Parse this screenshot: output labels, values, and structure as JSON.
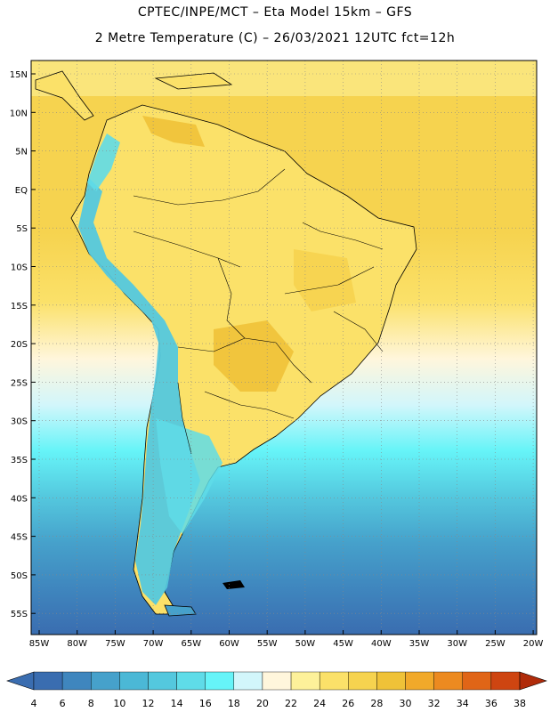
{
  "header": {
    "line1": "CPTEC/INPE/MCT –  Eta Model 15km – GFS",
    "line2": "2 Metre Temperature (C) – 26/03/2021 12UTC fct=12h"
  },
  "axes": {
    "lat_labels": [
      "15N",
      "10N",
      "5N",
      "EQ",
      "5S",
      "10S",
      "15S",
      "20S",
      "25S",
      "30S",
      "35S",
      "40S",
      "45S",
      "50S",
      "55S"
    ],
    "lon_labels": [
      "85W",
      "80W",
      "75W",
      "70W",
      "65W",
      "60W",
      "55W",
      "50W",
      "45W",
      "40W",
      "35W",
      "30W",
      "25W",
      "20W"
    ]
  },
  "colorbar": {
    "labels": [
      "4",
      "6",
      "8",
      "10",
      "12",
      "14",
      "16",
      "18",
      "20",
      "22",
      "24",
      "26",
      "28",
      "30",
      "32",
      "34",
      "36",
      "38"
    ],
    "colors": [
      "#3a6db0",
      "#3f86be",
      "#46a1cb",
      "#4bb8d6",
      "#54c8de",
      "#5fdce8",
      "#66f4f8",
      "#d2f6fb",
      "#fff6dc",
      "#fdf19a",
      "#fbe169",
      "#f6d34f",
      "#efc238",
      "#f1a92a",
      "#ec8a20",
      "#e06517",
      "#ce4511",
      "#b02b0a"
    ],
    "low_color": "#3a6db0",
    "high_color": "#b02b0a"
  }
}
